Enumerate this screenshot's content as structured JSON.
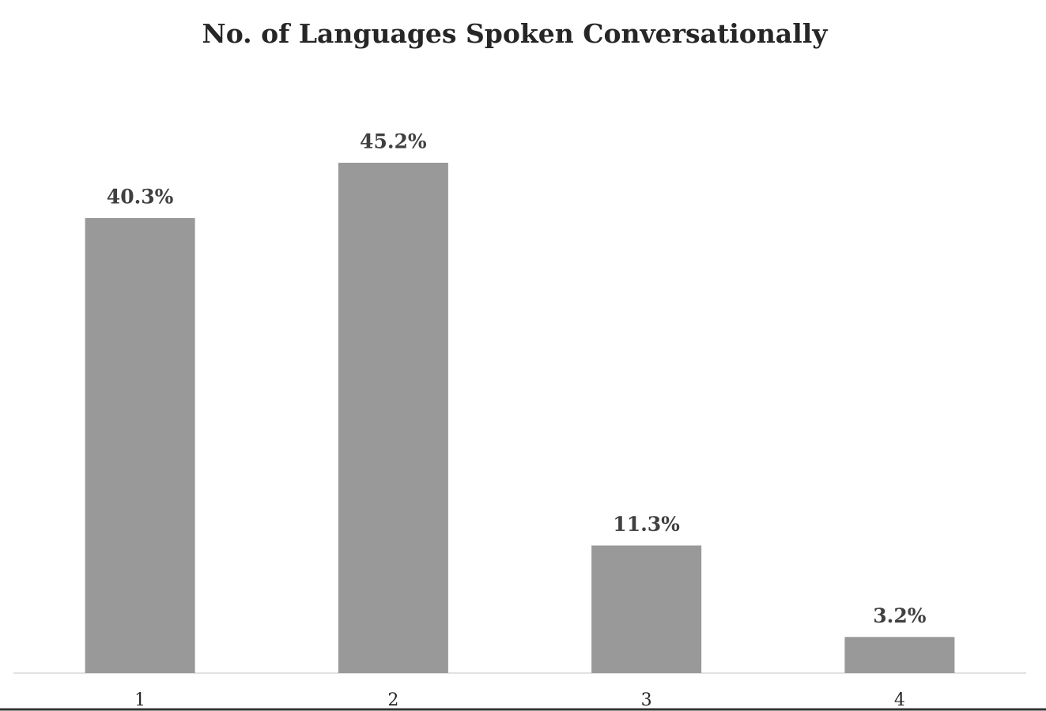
{
  "chart_data": {
    "type": "bar",
    "title": "No. of Languages Spoken Conversationally",
    "categories": [
      "1",
      "2",
      "3",
      "4"
    ],
    "values": [
      40.3,
      45.2,
      11.3,
      3.2
    ],
    "value_labels": [
      "40.3%",
      "45.2%",
      "11.3%",
      "3.2%"
    ],
    "color": "#999999"
  }
}
